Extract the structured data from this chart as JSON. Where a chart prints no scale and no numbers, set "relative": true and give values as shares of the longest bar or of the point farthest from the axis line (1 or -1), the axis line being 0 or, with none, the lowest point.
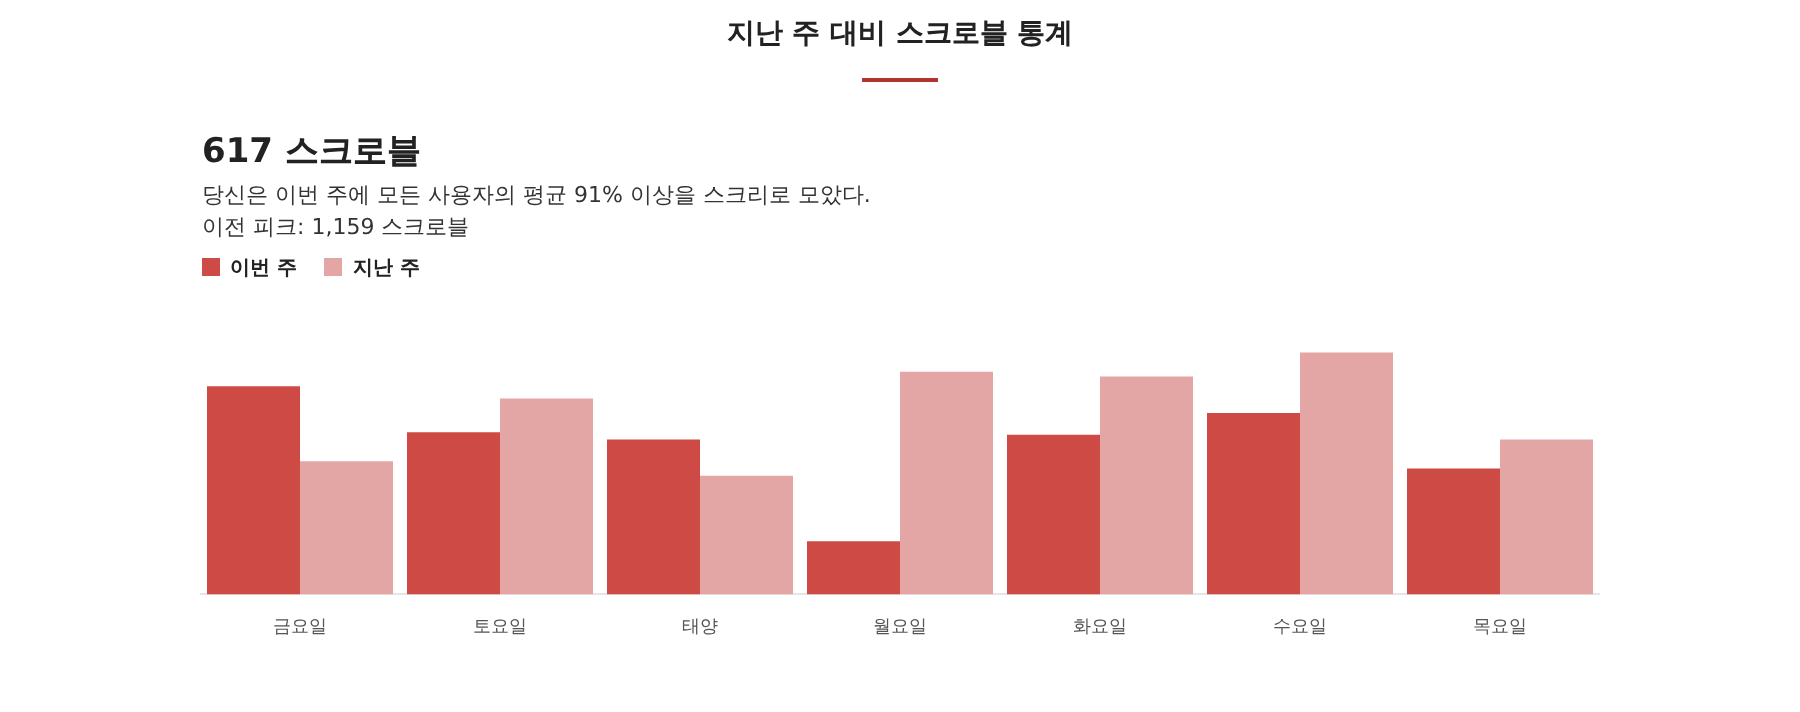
{
  "chart_data": {
    "type": "bar",
    "title": "지난 주 대비 스크로블 통계",
    "subtitle": "617 스크로블",
    "annotations": [
      "당신은 이번 주에 모든 사용자의 평균 91% 이상을 스크리로 모았다.",
      "이전 피크: 1,159 스크로블"
    ],
    "categories": [
      "금요일",
      "토요일",
      "태양",
      "월요일",
      "화요일",
      "수요일",
      "목요일"
    ],
    "series": [
      {
        "name": "이번 주",
        "color": "#cd4a45",
        "values": [
          0.86,
          0.67,
          0.64,
          0.22,
          0.66,
          0.75,
          0.52
        ]
      },
      {
        "name": "지난 주",
        "color": "#e3a6a5",
        "values": [
          0.55,
          0.81,
          0.49,
          0.92,
          0.9,
          1,
          0.64
        ]
      }
    ],
    "relative": true,
    "legend": "top left"
  }
}
